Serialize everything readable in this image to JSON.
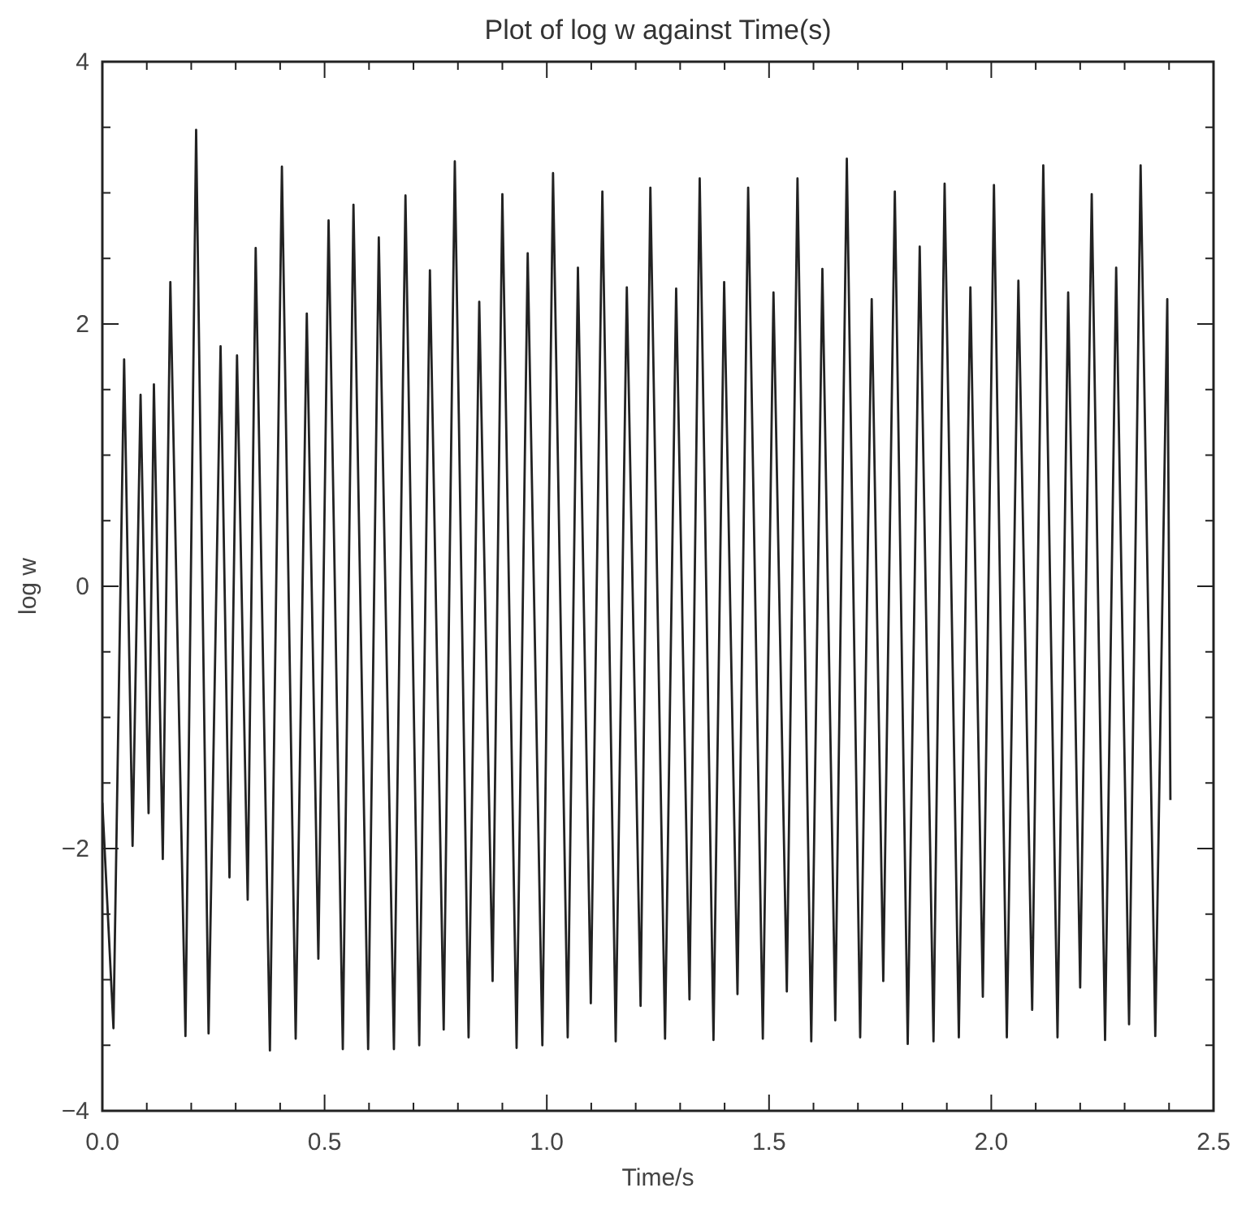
{
  "chart_data": {
    "type": "line",
    "title": "Plot of log w against Time(s)",
    "xlabel": "Time/s",
    "ylabel": "log w",
    "xlim": [
      0,
      2.5
    ],
    "ylim": [
      -4,
      4
    ],
    "xticks": [
      {
        "value": 0,
        "label": "0.0"
      },
      {
        "value": 0.1,
        "label": null
      },
      {
        "value": 0.2,
        "label": null
      },
      {
        "value": 0.3,
        "label": null
      },
      {
        "value": 0.4,
        "label": null
      },
      {
        "value": 0.5,
        "label": "0.5"
      },
      {
        "value": 0.6,
        "label": null
      },
      {
        "value": 0.7,
        "label": null
      },
      {
        "value": 0.8,
        "label": null
      },
      {
        "value": 0.9,
        "label": null
      },
      {
        "value": 1,
        "label": "1.0"
      },
      {
        "value": 1.1,
        "label": null
      },
      {
        "value": 1.2,
        "label": null
      },
      {
        "value": 1.3,
        "label": null
      },
      {
        "value": 1.4,
        "label": null
      },
      {
        "value": 1.5,
        "label": "1.5"
      },
      {
        "value": 1.6,
        "label": null
      },
      {
        "value": 1.7,
        "label": null
      },
      {
        "value": 1.8,
        "label": null
      },
      {
        "value": 1.9,
        "label": null
      },
      {
        "value": 2,
        "label": "2.0"
      },
      {
        "value": 2.1,
        "label": null
      },
      {
        "value": 2.2,
        "label": null
      },
      {
        "value": 2.3,
        "label": null
      },
      {
        "value": 2.4,
        "label": null
      },
      {
        "value": 2.5,
        "label": "2.5"
      }
    ],
    "yticks": [
      -4,
      {
        "value": -3.5,
        "label": null
      },
      {
        "value": -3,
        "label": null
      },
      {
        "value": -2.5,
        "label": null
      },
      -2,
      {
        "value": -1.5,
        "label": null
      },
      {
        "value": -1,
        "label": null
      },
      {
        "value": -0.5,
        "label": null
      },
      0,
      {
        "value": 0.5,
        "label": null
      },
      {
        "value": 1,
        "label": null
      },
      {
        "value": 1.5,
        "label": null
      },
      2,
      {
        "value": 2.5,
        "label": null
      },
      {
        "value": 3,
        "label": null
      },
      {
        "value": 3.5,
        "label": null
      },
      4
    ],
    "grid": false,
    "marker": "none",
    "line_style": "solid",
    "series": [
      {
        "color": "#222222",
        "x": [
          0,
          0.025,
          0.049,
          0.068,
          0.086,
          0.104,
          0.116,
          0.136,
          0.153,
          0.187,
          0.211,
          0.239,
          0.266,
          0.286,
          0.303,
          0.327,
          0.345,
          0.377,
          0.404,
          0.435,
          0.46,
          0.486,
          0.509,
          0.541,
          0.565,
          0.598,
          0.622,
          0.656,
          0.682,
          0.713,
          0.737,
          0.768,
          0.793,
          0.824,
          0.848,
          0.878,
          0.9,
          0.932,
          0.957,
          0.99,
          1.014,
          1.047,
          1.07,
          1.099,
          1.125,
          1.155,
          1.18,
          1.211,
          1.233,
          1.266,
          1.291,
          1.321,
          1.344,
          1.375,
          1.399,
          1.429,
          1.453,
          1.486,
          1.51,
          1.54,
          1.564,
          1.595,
          1.62,
          1.649,
          1.675,
          1.705,
          1.731,
          1.757,
          1.783,
          1.812,
          1.839,
          1.87,
          1.895,
          1.927,
          1.953,
          1.981,
          2.006,
          2.035,
          2.061,
          2.092,
          2.117,
          2.149,
          2.173,
          2.2,
          2.226,
          2.256,
          2.281,
          2.31,
          2.336,
          2.369,
          2.396,
          2.403
        ],
        "values": [
          -1.65,
          -3.37,
          1.73,
          -1.98,
          1.46,
          -1.73,
          1.54,
          -2.08,
          2.32,
          -3.43,
          3.48,
          -3.41,
          1.83,
          -2.22,
          1.76,
          -2.39,
          2.58,
          -3.54,
          3.2,
          -3.45,
          2.08,
          -2.84,
          2.79,
          -3.53,
          2.91,
          -3.53,
          2.66,
          -3.53,
          2.98,
          -3.5,
          2.41,
          -3.38,
          3.24,
          -3.44,
          2.17,
          -3.01,
          2.99,
          -3.52,
          2.54,
          -3.5,
          3.15,
          -3.44,
          2.43,
          -3.18,
          3.01,
          -3.47,
          2.28,
          -3.2,
          3.04,
          -3.45,
          2.27,
          -3.15,
          3.11,
          -3.46,
          2.32,
          -3.11,
          3.04,
          -3.45,
          2.24,
          -3.09,
          3.11,
          -3.47,
          2.42,
          -3.31,
          3.26,
          -3.44,
          2.19,
          -3.01,
          3.01,
          -3.49,
          2.59,
          -3.47,
          3.07,
          -3.44,
          2.28,
          -3.13,
          3.06,
          -3.44,
          2.33,
          -3.23,
          3.21,
          -3.44,
          2.24,
          -3.06,
          2.99,
          -3.46,
          2.43,
          -3.34,
          3.21,
          -3.43,
          2.19,
          -1.63
        ]
      }
    ]
  }
}
